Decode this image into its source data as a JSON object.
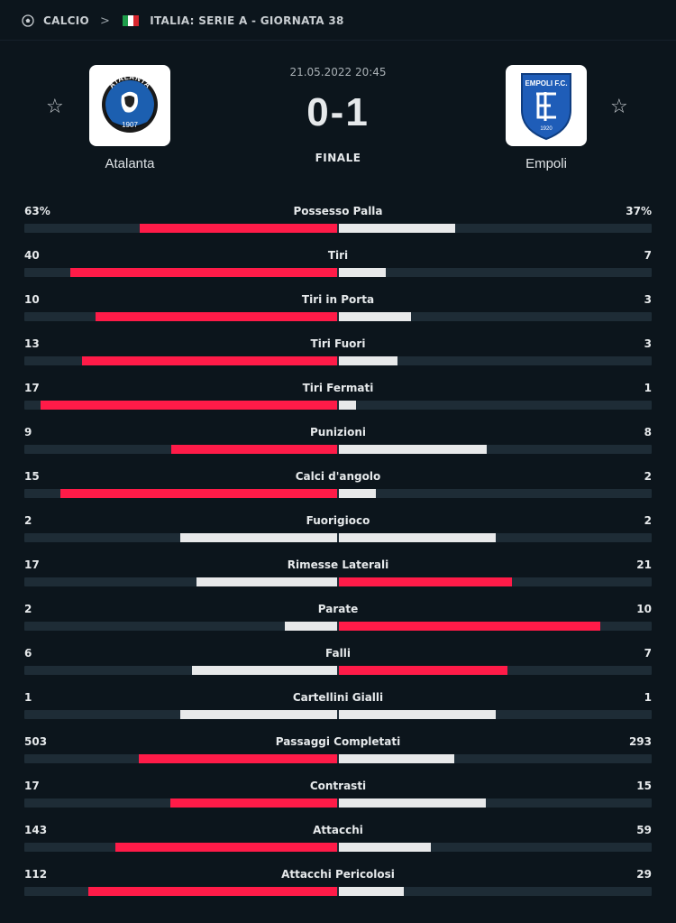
{
  "breadcrumb": {
    "sport": "CALCIO",
    "competition": "ITALIA: SERIE A - GIORNATA 38"
  },
  "match": {
    "date": "21.05.2022 20:45",
    "score": "0-1",
    "status": "FINALE"
  },
  "home": {
    "name": "Atalanta",
    "logo_text": "ATALANTA",
    "logo_year": "1907"
  },
  "away": {
    "name": "Empoli",
    "logo_text": "EMPOLI F.C.",
    "logo_year": "1920"
  },
  "colors": {
    "win": "#ff1b48",
    "lose": "#e8e9ea",
    "track": "#1e2c36",
    "background": "#0c151c"
  },
  "stats": [
    {
      "label": "Possesso Palla",
      "home": "63%",
      "away": "37%",
      "h": 63,
      "a": 37
    },
    {
      "label": "Tiri",
      "home": "40",
      "away": "7",
      "h": 40,
      "a": 7
    },
    {
      "label": "Tiri in Porta",
      "home": "10",
      "away": "3",
      "h": 10,
      "a": 3
    },
    {
      "label": "Tiri Fuori",
      "home": "13",
      "away": "3",
      "h": 13,
      "a": 3
    },
    {
      "label": "Tiri Fermati",
      "home": "17",
      "away": "1",
      "h": 17,
      "a": 1
    },
    {
      "label": "Punizioni",
      "home": "9",
      "away": "8",
      "h": 9,
      "a": 8
    },
    {
      "label": "Calci d'angolo",
      "home": "15",
      "away": "2",
      "h": 15,
      "a": 2
    },
    {
      "label": "Fuorigioco",
      "home": "2",
      "away": "2",
      "h": 2,
      "a": 2
    },
    {
      "label": "Rimesse Laterali",
      "home": "17",
      "away": "21",
      "h": 17,
      "a": 21
    },
    {
      "label": "Parate",
      "home": "2",
      "away": "10",
      "h": 2,
      "a": 10
    },
    {
      "label": "Falli",
      "home": "6",
      "away": "7",
      "h": 6,
      "a": 7
    },
    {
      "label": "Cartellini Gialli",
      "home": "1",
      "away": "1",
      "h": 1,
      "a": 1
    },
    {
      "label": "Passaggi Completati",
      "home": "503",
      "away": "293",
      "h": 503,
      "a": 293
    },
    {
      "label": "Contrasti",
      "home": "17",
      "away": "15",
      "h": 17,
      "a": 15
    },
    {
      "label": "Attacchi",
      "home": "143",
      "away": "59",
      "h": 143,
      "a": 59
    },
    {
      "label": "Attacchi Pericolosi",
      "home": "112",
      "away": "29",
      "h": 112,
      "a": 29
    }
  ]
}
